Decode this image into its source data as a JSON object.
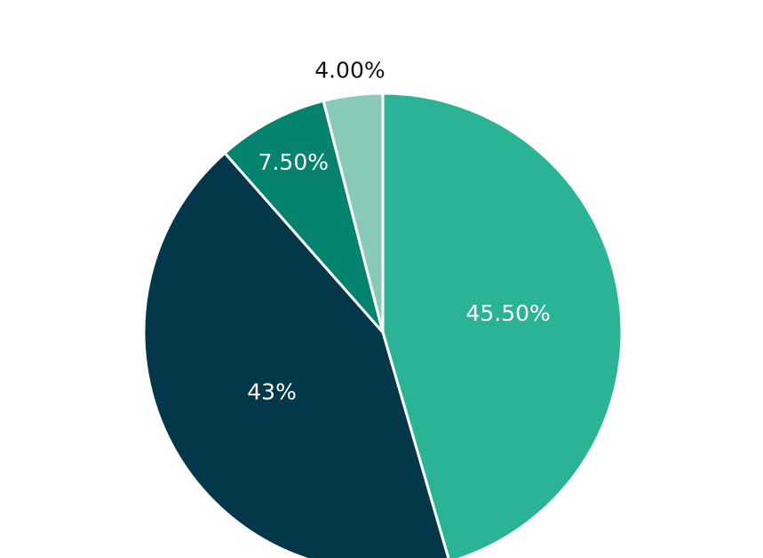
{
  "chart_data": {
    "type": "pie",
    "values": [
      45.5,
      43,
      7.5,
      4
    ],
    "value_labels": [
      "45.50%",
      "43%",
      "7.50%",
      "4.00%"
    ],
    "colors": [
      "#2bb395",
      "#033749",
      "#06836f",
      "#89c9b8"
    ]
  }
}
